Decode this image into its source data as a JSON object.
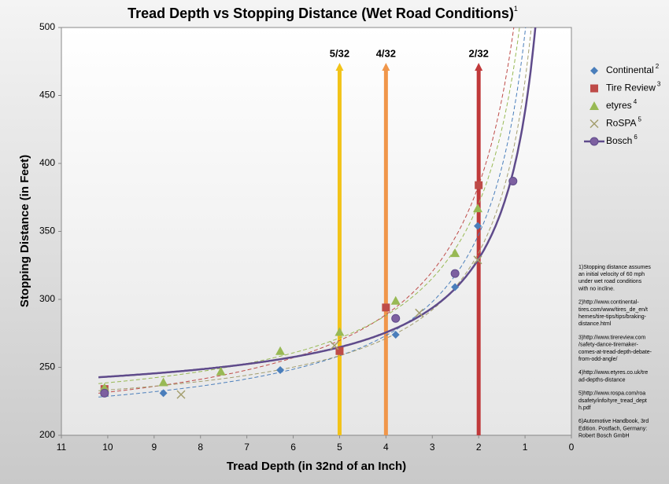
{
  "chart_data": {
    "type": "scatter",
    "title": "Tread Depth vs Stopping Distance (Wet Road Conditions)",
    "title_footnote": "1",
    "x_label": "Tread Depth (in 32nd of an Inch)",
    "y_label": "Stopping Distance (in Feet)",
    "xlim": [
      11,
      0
    ],
    "ylim": [
      200,
      500
    ],
    "xticks": [
      11,
      10,
      9,
      8,
      7,
      6,
      5,
      4,
      3,
      2,
      1,
      0
    ],
    "yticks": [
      200,
      250,
      300,
      350,
      400,
      450,
      500
    ],
    "grid": false,
    "legend": "right",
    "series": [
      {
        "name": "Continental",
        "footnote": "2",
        "marker": "diamond",
        "color": "#4a7ebb",
        "trendline": "dashed",
        "x": [
          10.07,
          8.8,
          6.28,
          3.79,
          2.51,
          2.02
        ],
        "values": [
          233,
          231,
          248,
          274,
          309,
          354
        ]
      },
      {
        "name": "Tire Review",
        "footnote": "3",
        "marker": "square",
        "color": "#be4b48",
        "trendline": "dashed",
        "x": [
          10.07,
          5.0,
          4.0,
          2.0
        ],
        "values": [
          234,
          262,
          294,
          384
        ]
      },
      {
        "name": "etyres",
        "footnote": "4",
        "marker": "triangle",
        "color": "#98b954",
        "trendline": "dashed",
        "x": [
          10.07,
          8.8,
          7.56,
          6.28,
          5.0,
          3.79,
          2.51,
          2.02
        ],
        "values": [
          235,
          239,
          247,
          262,
          276,
          299,
          334,
          367
        ]
      },
      {
        "name": "RoSPA",
        "footnote": "5",
        "marker": "cross",
        "color": "#a39e6e",
        "trendline": "dashed",
        "x": [
          10.07,
          8.42,
          5.11,
          3.28,
          2.02
        ],
        "values": [
          232,
          230,
          266,
          290,
          329
        ]
      },
      {
        "name": "Bosch",
        "footnote": "6",
        "marker": "circle",
        "color": "#7d60a0",
        "trendline": "solid",
        "x": [
          10.07,
          3.79,
          2.51,
          1.26
        ],
        "values": [
          231,
          286,
          319,
          387
        ]
      }
    ],
    "annotations": [
      {
        "x": 5,
        "label": "5/32",
        "color": "#f2c318"
      },
      {
        "x": 4,
        "label": "4/32",
        "color": "#f0964a"
      },
      {
        "x": 2,
        "label": "2/32",
        "color": "#c0393a"
      }
    ],
    "footnotes": [
      [
        "1)Stopping distance assumes",
        "an initial velocity of 60 mph",
        "under wet road conditions",
        "with no incline."
      ],
      [
        "2)http://www.continental-",
        "tires.com/www/tires_de_en/t",
        "hemes/tire-tips/tips/braking-",
        "distance.html"
      ],
      [
        "3)http://www.tirereview.com",
        "/safety-dance-tiremaker-",
        "comes-at-tread-depth-debate-",
        "from-odd-angle/"
      ],
      [
        "4)http://www.etyres.co.uk/tre",
        "ad-depths-distance"
      ],
      [
        "5)http://www.rospa.com/roa",
        "dsafety/info/tyre_tread_dept",
        "h.pdf"
      ],
      [
        "6)Automotive Handbook, 3rd",
        "Edition. Postfach, Germany:",
        "Robert Bosch GmbH"
      ]
    ]
  }
}
